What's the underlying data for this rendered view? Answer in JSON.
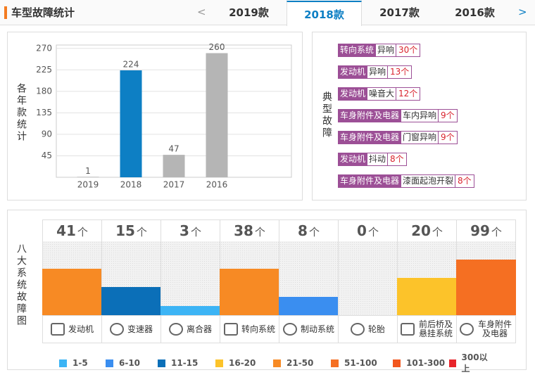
{
  "header": {
    "title": "车型故障统计",
    "prev": "<",
    "next": ">",
    "tabs": [
      "2019款",
      "2018款",
      "2017款",
      "2016款"
    ],
    "active_tab": 1
  },
  "chart_data": {
    "type": "bar",
    "y_label": "各年款统计",
    "categories": [
      "2019",
      "2018",
      "2017",
      "2016"
    ],
    "values": [
      1,
      224,
      47,
      260
    ],
    "colors": [
      "#b5b5b5",
      "#0d7fc4",
      "#b5b5b5",
      "#b5b5b5"
    ],
    "ylim": [
      0,
      277
    ],
    "yticks": [
      45,
      90,
      135,
      180,
      225,
      270
    ],
    "grid": true
  },
  "typical_faults": {
    "label": "典型故障",
    "items": [
      {
        "system": "转向系统",
        "fault": "异响",
        "count": "30个"
      },
      {
        "system": "发动机",
        "fault": "异响",
        "count": "13个"
      },
      {
        "system": "发动机",
        "fault": "噪音大",
        "count": "12个"
      },
      {
        "system": "车身附件及电器",
        "fault": "车内异响",
        "count": "9个"
      },
      {
        "system": "车身附件及电器",
        "fault": "门窗异响",
        "count": "9个"
      },
      {
        "system": "发动机",
        "fault": "抖动",
        "count": "8个"
      },
      {
        "system": "车身附件及电器",
        "fault": "漆面起泡开裂",
        "count": "8个"
      }
    ]
  },
  "systems": {
    "label": "八大系统故障图",
    "unit": "个",
    "items": [
      {
        "name": "发动机",
        "count": 41
      },
      {
        "name": "变速器",
        "count": 15
      },
      {
        "name": "离合器",
        "count": 3
      },
      {
        "name": "转向系统",
        "count": 38
      },
      {
        "name": "制动系统",
        "count": 8
      },
      {
        "name": "轮胎",
        "count": 0
      },
      {
        "name": "前后桥及悬挂系统",
        "count": 20
      },
      {
        "name": "车身附件及电器",
        "count": 99
      }
    ],
    "legend": [
      {
        "label": "1-5",
        "min": 1,
        "color": "#3cb4f5"
      },
      {
        "label": "6-10",
        "min": 6,
        "color": "#3a8ef0"
      },
      {
        "label": "11-15",
        "min": 11,
        "color": "#0b6fb8"
      },
      {
        "label": "16-20",
        "min": 16,
        "color": "#fcc32a"
      },
      {
        "label": "21-50",
        "min": 21,
        "color": "#f78a24"
      },
      {
        "label": "51-100",
        "min": 51,
        "color": "#f56f22"
      },
      {
        "label": "101-300",
        "min": 101,
        "color": "#f2561d"
      },
      {
        "label": "300以上",
        "min": 301,
        "color": "#e8242a"
      }
    ]
  }
}
